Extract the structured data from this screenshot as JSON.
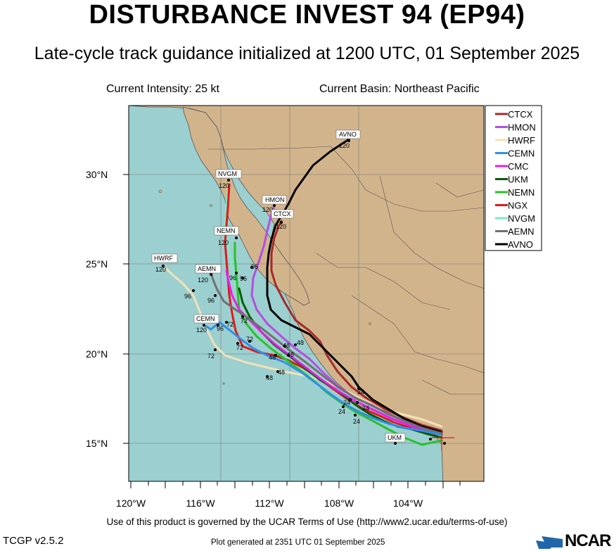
{
  "header": {
    "title": "DISTURBANCE INVEST 94 (EP94)",
    "subtitle": "Late-cycle track guidance initialized at 1200 UTC, 01 September 2025",
    "current_intensity": "Current Intensity: 25 kt",
    "current_basin": "Current Basin: Northeast Pacific"
  },
  "map": {
    "lat_labels": [
      "30°N",
      "25°N",
      "20°N",
      "15°N"
    ],
    "lon_labels": [
      "120°W",
      "116°W",
      "112°W",
      "108°W",
      "104°W"
    ],
    "colors": {
      "ocean": "#9ccfcf",
      "land": "#d2b48c",
      "border": "#555555"
    }
  },
  "legend": [
    {
      "name": "CTCX",
      "color": "#a52a2a"
    },
    {
      "name": "HMON",
      "color": "#b44ee0"
    },
    {
      "name": "HWRF",
      "color": "#f2e2b8"
    },
    {
      "name": "CEMN",
      "color": "#2f8fe8"
    },
    {
      "name": "CMC",
      "color": "#e61ee6"
    },
    {
      "name": "UKM",
      "color": "#0a5a0a"
    },
    {
      "name": "NEMN",
      "color": "#28c228"
    },
    {
      "name": "NGX",
      "color": "#e01a1a"
    },
    {
      "name": "NVGM",
      "color": "#7fe8c8"
    },
    {
      "name": "AEMN",
      "color": "#707070"
    },
    {
      "name": "AVNO",
      "color": "#000000"
    }
  ],
  "track_labels": {
    "AVNO": "AVNO",
    "HMON": "HMON",
    "CTCX": "CTCX",
    "NVGM": "NVGM",
    "NEMN": "NEMN",
    "HWRF": "HWRF",
    "AEMN": "AEMN",
    "CEMN": "CEMN",
    "UKM": "UKM"
  },
  "forecast_hours": [
    "24",
    "48",
    "72",
    "96",
    "120"
  ],
  "footer": {
    "terms": "Use of this product is governed by the UCAR Terms of Use (http://www2.ucar.edu/terms-of-use)",
    "version": "TCGP v2.5.2",
    "generated": "Plot generated at 2351 UTC   01 September 2025",
    "logo_text": "NCAR"
  }
}
